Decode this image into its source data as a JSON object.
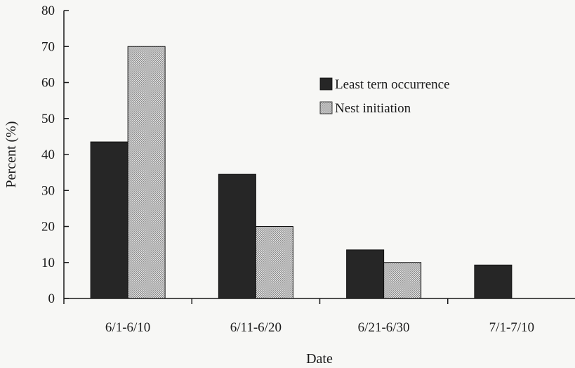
{
  "chart_data": {
    "type": "bar",
    "title": "",
    "xlabel": "Date",
    "ylabel": "Percent (%)",
    "ylim": [
      0,
      80
    ],
    "yticks": [
      0,
      10,
      20,
      30,
      40,
      50,
      60,
      70,
      80
    ],
    "categories": [
      "6/1-6/10",
      "6/11-6/20",
      "6/21-6/30",
      "7/1-7/10"
    ],
    "series": [
      {
        "name": "Least tern occurrence",
        "values": [
          43.5,
          34.5,
          13.5,
          9.3
        ],
        "color": "#262626",
        "pattern": "solid"
      },
      {
        "name": "Nest initiation",
        "values": [
          70,
          20,
          10,
          0
        ],
        "color": "#d9d9d9",
        "pattern": "checkered"
      }
    ],
    "legend": {
      "position": "top-right"
    },
    "grid": false
  }
}
